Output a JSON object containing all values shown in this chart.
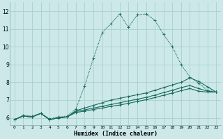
{
  "xlabel": "Humidex (Indice chaleur)",
  "bg_color": "#cce8e8",
  "grid_color": "#aacfcf",
  "line_color": "#1a6b60",
  "xlim": [
    -0.5,
    23.5
  ],
  "ylim": [
    5.6,
    12.5
  ],
  "yticks": [
    6,
    7,
    8,
    9,
    10,
    11,
    12
  ],
  "xticks": [
    0,
    1,
    2,
    3,
    4,
    5,
    6,
    7,
    8,
    9,
    10,
    11,
    12,
    13,
    14,
    15,
    16,
    17,
    18,
    19,
    20,
    21,
    22,
    23
  ],
  "series": [
    {
      "x": [
        0,
        1,
        2,
        3,
        4,
        5,
        6,
        7,
        8,
        9,
        10,
        11,
        12,
        13,
        14,
        15,
        16,
        17,
        18,
        19,
        20,
        21,
        22,
        23
      ],
      "y": [
        5.9,
        6.15,
        6.1,
        6.25,
        5.95,
        6.05,
        6.1,
        6.5,
        7.8,
        9.35,
        10.8,
        11.3,
        11.85,
        11.1,
        11.8,
        11.85,
        11.5,
        10.7,
        10.0,
        9.0,
        8.3,
        7.95,
        7.55,
        7.45
      ],
      "style": "dotted",
      "marker": "+"
    },
    {
      "x": [
        0,
        1,
        2,
        3,
        4,
        5,
        6,
        7,
        8,
        9,
        10,
        11,
        12,
        13,
        14,
        15,
        16,
        17,
        18,
        19,
        20,
        21,
        22,
        23
      ],
      "y": [
        5.9,
        6.1,
        6.05,
        6.25,
        5.9,
        6.0,
        6.05,
        6.4,
        6.55,
        6.7,
        6.85,
        7.0,
        7.1,
        7.2,
        7.3,
        7.4,
        7.55,
        7.7,
        7.85,
        8.0,
        8.25,
        8.05,
        7.75,
        7.45
      ],
      "style": "solid",
      "marker": "+"
    },
    {
      "x": [
        0,
        1,
        2,
        3,
        4,
        5,
        6,
        7,
        8,
        9,
        10,
        11,
        12,
        13,
        14,
        15,
        16,
        17,
        18,
        19,
        20,
        21,
        22,
        23
      ],
      "y": [
        5.9,
        6.1,
        6.05,
        6.25,
        5.9,
        6.0,
        6.05,
        6.35,
        6.45,
        6.55,
        6.65,
        6.75,
        6.85,
        6.95,
        7.05,
        7.15,
        7.28,
        7.42,
        7.55,
        7.7,
        7.82,
        7.65,
        7.5,
        7.45
      ],
      "style": "solid",
      "marker": "+"
    },
    {
      "x": [
        0,
        1,
        2,
        3,
        4,
        5,
        6,
        7,
        8,
        9,
        10,
        11,
        12,
        13,
        14,
        15,
        16,
        17,
        18,
        19,
        20,
        21,
        22,
        23
      ],
      "y": [
        5.9,
        6.1,
        6.05,
        6.25,
        5.9,
        6.0,
        6.05,
        6.3,
        6.38,
        6.47,
        6.55,
        6.65,
        6.72,
        6.82,
        6.92,
        7.02,
        7.14,
        7.27,
        7.4,
        7.53,
        7.65,
        7.5,
        7.45,
        7.45
      ],
      "style": "solid",
      "marker": "+"
    }
  ]
}
